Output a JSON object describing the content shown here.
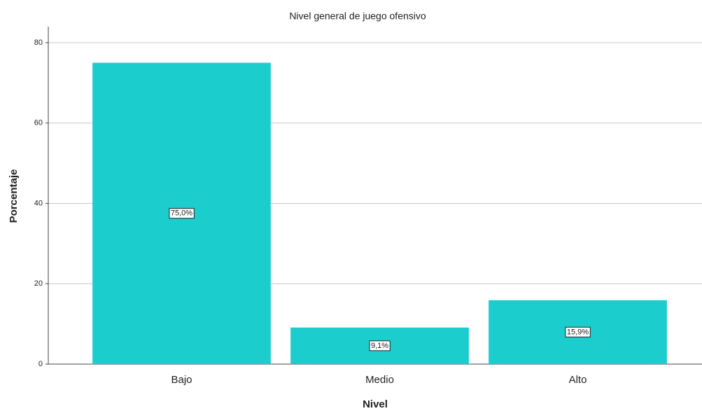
{
  "chart_data": {
    "type": "bar",
    "title": "Nivel general de juego ofensivo",
    "x_label": "Nivel",
    "y_label": "Porcentaje",
    "categories": [
      "Bajo",
      "Medio",
      "Alto"
    ],
    "values": [
      75.0,
      9.1,
      15.9
    ],
    "value_labels": [
      "75,0%",
      "9,1%",
      "15,9%"
    ],
    "color": "#1ccdcd",
    "ylim": [
      0,
      84
    ],
    "yticks": [
      0,
      20,
      40,
      60,
      80
    ],
    "grid": true
  }
}
